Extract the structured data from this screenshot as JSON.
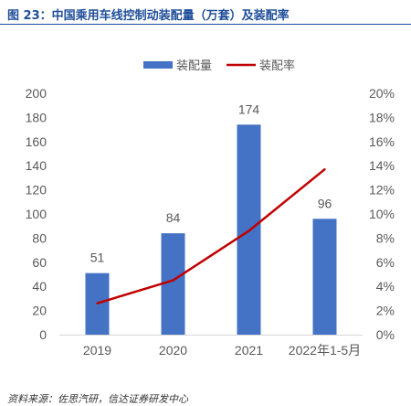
{
  "header": {
    "title": "图 23：中国乘用车线控制动装配量（万套）及装配率"
  },
  "footer": {
    "source": "资料来源：佐思汽研，信达证券研发中心"
  },
  "colors": {
    "bar": "#4472C4",
    "line": "#C00000",
    "title": "#1F4E9A",
    "axis": "#595959",
    "baseline": "#D9D9D9"
  },
  "chart_data": {
    "type": "bar",
    "categories": [
      "2019",
      "2020",
      "2021",
      "2022年1-5月"
    ],
    "series": [
      {
        "name": "装配量",
        "type": "bar",
        "axis": "left",
        "values": [
          51,
          84,
          174,
          96
        ]
      },
      {
        "name": "装配率",
        "type": "line",
        "axis": "right",
        "values": [
          2.6,
          4.5,
          8.6,
          13.7
        ]
      }
    ],
    "y_left": {
      "min": 0,
      "max": 200,
      "ticks": [
        "0",
        "20",
        "40",
        "60",
        "80",
        "100",
        "120",
        "140",
        "160",
        "180",
        "200"
      ]
    },
    "y_right": {
      "min": 0,
      "max": 20,
      "ticks": [
        "0%",
        "2%",
        "4%",
        "6%",
        "8%",
        "10%",
        "12%",
        "14%",
        "16%",
        "18%",
        "20%"
      ]
    },
    "data_labels": [
      "51",
      "84",
      "174",
      "96"
    ],
    "legend": {
      "position": "top"
    },
    "grid": false
  }
}
